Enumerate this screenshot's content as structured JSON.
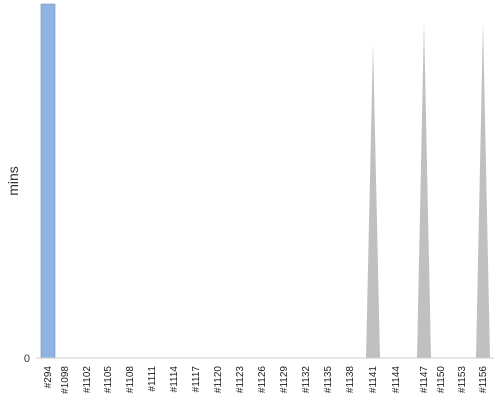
{
  "chart_data": {
    "type": "area",
    "xlabel": "",
    "ylabel": "mins",
    "ylim": [
      0,
      100
    ],
    "y_ticks": [
      "0"
    ],
    "grid": false,
    "x_tick_labels": [
      "#294",
      "#1098",
      "#1102",
      "#1105",
      "#1108",
      "#1111",
      "#1114",
      "#1117",
      "#1120",
      "#1123",
      "#1126",
      "#1129",
      "#1132",
      "#1135",
      "#1138",
      "#1141",
      "#1144",
      "#1147",
      "#1150",
      "#1153",
      "#1156"
    ],
    "bar": {
      "category": "#294",
      "value": 100,
      "color": "#8fb3e3"
    },
    "area": {
      "color": "#c0c0c0",
      "points": [
        {
          "x": "#1141",
          "y": 0
        },
        {
          "x": "#1141",
          "y": 89
        },
        {
          "x": "#1141",
          "y": 0
        },
        {
          "x": "#1147",
          "y": 0
        },
        {
          "x": "#1147",
          "y": 95
        },
        {
          "x": "#1147",
          "y": 0
        },
        {
          "x": "#1156",
          "y": 0
        },
        {
          "x": "#1156",
          "y": 95
        },
        {
          "x": "#1156",
          "y": 0
        }
      ]
    }
  }
}
